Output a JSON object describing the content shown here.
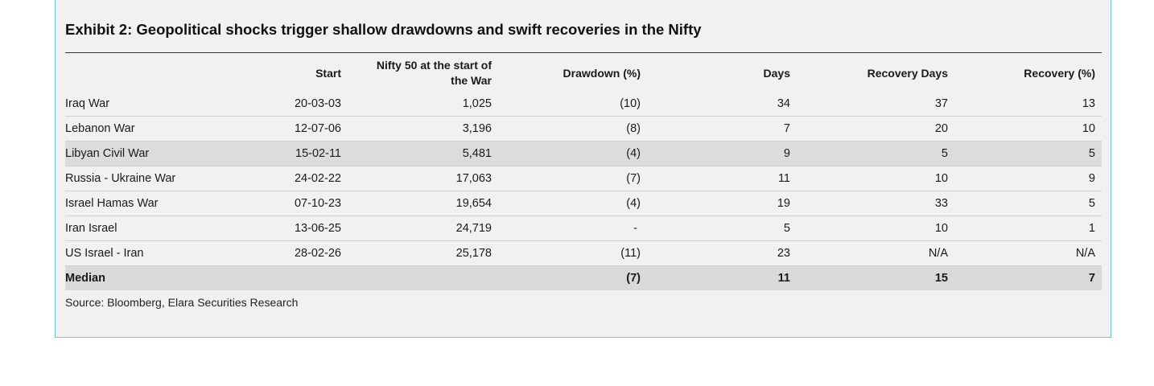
{
  "title": "Exhibit 2: Geopolitical shocks trigger shallow drawdowns and swift recoveries in the Nifty",
  "headers": {
    "name": "",
    "start": "Start",
    "nifty": "Nifty 50 at the start of the War",
    "drawdown": "Drawdown (%)",
    "days": "Days",
    "recovery_days": "Recovery Days",
    "recovery_pct": "Recovery (%)"
  },
  "rows": [
    {
      "name": "Iraq War",
      "start": "20-03-03",
      "nifty": "1,025",
      "drawdown": "(10)",
      "days": "34",
      "recovery_days": "37",
      "recovery_pct": "13"
    },
    {
      "name": "Lebanon War",
      "start": "12-07-06",
      "nifty": "3,196",
      "drawdown": "(8)",
      "days": "7",
      "recovery_days": "20",
      "recovery_pct": "10"
    },
    {
      "name": "Libyan Civil War",
      "start": "15-02-11",
      "nifty": "5,481",
      "drawdown": "(4)",
      "days": "9",
      "recovery_days": "5",
      "recovery_pct": "5"
    },
    {
      "name": "Russia - Ukraine War",
      "start": "24-02-22",
      "nifty": "17,063",
      "drawdown": "(7)",
      "days": "11",
      "recovery_days": "10",
      "recovery_pct": "9"
    },
    {
      "name": "Israel Hamas War",
      "start": "07-10-23",
      "nifty": "19,654",
      "drawdown": "(4)",
      "days": "19",
      "recovery_days": "33",
      "recovery_pct": "5"
    },
    {
      "name": "Iran Israel",
      "start": "13-06-25",
      "nifty": "24,719",
      "drawdown": "-",
      "days": "5",
      "recovery_days": "10",
      "recovery_pct": "1"
    },
    {
      "name": "US Israel - Iran",
      "start": "28-02-26",
      "nifty": "25,178",
      "drawdown": "(11)",
      "days": "23",
      "recovery_days": "N/A",
      "recovery_pct": "N/A"
    }
  ],
  "median": {
    "name": "Median",
    "start": "",
    "nifty": "",
    "drawdown": "(7)",
    "days": "11",
    "recovery_days": "15",
    "recovery_pct": "7"
  },
  "source": "Source: Bloomberg, Elara Securities Research"
}
